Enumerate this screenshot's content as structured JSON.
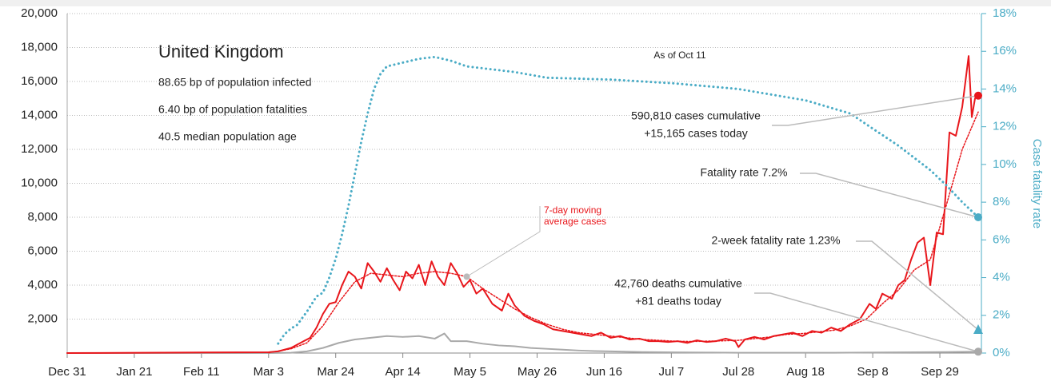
{
  "chart_data": {
    "type": "line",
    "title": "United Kingdom",
    "stats": [
      "88.65 bp of population infected",
      "6.40 bp of population fatalities",
      "40.5 median population age"
    ],
    "as_of": "As of Oct 11",
    "y2label": "Case fatality rate",
    "xlim": [
      0,
      286
    ],
    "xticks": [
      {
        "value": 0,
        "label": "Dec 31"
      },
      {
        "value": 21,
        "label": "Jan 21"
      },
      {
        "value": 42,
        "label": "Feb 11"
      },
      {
        "value": 63,
        "label": "Mar 3"
      },
      {
        "value": 84,
        "label": "Mar 24"
      },
      {
        "value": 105,
        "label": "Apr 14"
      },
      {
        "value": 126,
        "label": "May 5"
      },
      {
        "value": 147,
        "label": "May 26"
      },
      {
        "value": 168,
        "label": "Jun 16"
      },
      {
        "value": 189,
        "label": "Jul 7"
      },
      {
        "value": 210,
        "label": "Jul 28"
      },
      {
        "value": 231,
        "label": "Aug 18"
      },
      {
        "value": 252,
        "label": "Sep 8"
      },
      {
        "value": 273,
        "label": "Sep 29"
      }
    ],
    "ylim": [
      0,
      20000
    ],
    "yticks": [
      {
        "value": 2000,
        "label": "2,000"
      },
      {
        "value": 4000,
        "label": "4,000"
      },
      {
        "value": 6000,
        "label": "6,000"
      },
      {
        "value": 8000,
        "label": "8,000"
      },
      {
        "value": 10000,
        "label": "10,000"
      },
      {
        "value": 12000,
        "label": "12,000"
      },
      {
        "value": 14000,
        "label": "14,000"
      },
      {
        "value": 16000,
        "label": "16,000"
      },
      {
        "value": 18000,
        "label": "18,000"
      },
      {
        "value": 20000,
        "label": "20,000"
      }
    ],
    "y2lim": [
      0,
      18
    ],
    "y2ticks": [
      {
        "value": 0,
        "label": "0%"
      },
      {
        "value": 2,
        "label": "2%"
      },
      {
        "value": 4,
        "label": "4%"
      },
      {
        "value": 6,
        "label": "6%"
      },
      {
        "value": 8,
        "label": "8%"
      },
      {
        "value": 10,
        "label": "10%"
      },
      {
        "value": 12,
        "label": "12%"
      },
      {
        "value": 14,
        "label": "14%"
      },
      {
        "value": 16,
        "label": "16%"
      },
      {
        "value": 18,
        "label": "18%"
      }
    ],
    "grid": true,
    "series": [
      {
        "color": "#a9a9a9",
        "line_style": "solid",
        "x": [
          0,
          63,
          70,
          75,
          80,
          85,
          90,
          95,
          100,
          105,
          110,
          115,
          118,
          120,
          125,
          130,
          135,
          140,
          145,
          150,
          155,
          160,
          165,
          170,
          180,
          190,
          200,
          210,
          220,
          240,
          260,
          275,
          285
        ],
        "values": [
          0,
          0,
          20,
          100,
          300,
          600,
          800,
          900,
          1000,
          950,
          1000,
          850,
          1150,
          700,
          700,
          550,
          450,
          400,
          300,
          250,
          200,
          150,
          120,
          100,
          60,
          40,
          30,
          20,
          15,
          15,
          40,
          60,
          81
        ]
      },
      {
        "color": "#e8161b",
        "line_style": "solid",
        "x": [
          0,
          63,
          66,
          70,
          73,
          76,
          78,
          80,
          82,
          84,
          86,
          88,
          90,
          92,
          94,
          96,
          98,
          100,
          102,
          104,
          106,
          108,
          110,
          112,
          114,
          116,
          118,
          120,
          122,
          124,
          126,
          128,
          130,
          133,
          136,
          138,
          140,
          143,
          146,
          149,
          152,
          155,
          158,
          161,
          164,
          167,
          170,
          173,
          176,
          179,
          182,
          185,
          188,
          191,
          194,
          197,
          200,
          203,
          206,
          209,
          210,
          212,
          215,
          218,
          221,
          224,
          227,
          230,
          233,
          236,
          239,
          242,
          245,
          248,
          251,
          253,
          255,
          258,
          260,
          262,
          264,
          266,
          268,
          270,
          272,
          274,
          276,
          278,
          280,
          282,
          283,
          284,
          285
        ],
        "values": [
          0,
          50,
          100,
          300,
          600,
          900,
          1500,
          2300,
          2900,
          3000,
          4000,
          4800,
          4500,
          3800,
          5300,
          4800,
          4200,
          5000,
          4300,
          3700,
          4800,
          4400,
          5200,
          4000,
          5400,
          4500,
          4000,
          5300,
          4700,
          3900,
          4300,
          3500,
          3800,
          2900,
          2500,
          3500,
          2800,
          2200,
          1900,
          1700,
          1400,
          1300,
          1200,
          1100,
          1000,
          1200,
          900,
          1000,
          800,
          850,
          700,
          700,
          650,
          700,
          600,
          750,
          650,
          700,
          850,
          700,
          350,
          800,
          950,
          800,
          1000,
          1100,
          1200,
          1000,
          1300,
          1200,
          1500,
          1300,
          1700,
          2000,
          2900,
          2600,
          3500,
          3200,
          4000,
          4300,
          5500,
          6500,
          6800,
          4000,
          7100,
          7000,
          13000,
          12800,
          14500,
          17500,
          13900,
          15000,
          15165
        ]
      },
      {
        "name": "7-day moving average cases",
        "color": "#e8161b",
        "line_style": "dotted",
        "x": [
          63,
          70,
          75,
          80,
          85,
          90,
          95,
          100,
          105,
          110,
          115,
          120,
          125,
          130,
          135,
          140,
          145,
          150,
          155,
          160,
          165,
          170,
          175,
          180,
          185,
          190,
          195,
          200,
          205,
          210,
          215,
          220,
          225,
          230,
          235,
          240,
          245,
          250,
          255,
          260,
          265,
          270,
          275,
          280,
          285
        ],
        "values": [
          20,
          250,
          600,
          1600,
          3000,
          4200,
          4700,
          4600,
          4500,
          4700,
          4800,
          4700,
          4500,
          3800,
          3200,
          2600,
          2100,
          1700,
          1400,
          1200,
          1100,
          1000,
          900,
          800,
          750,
          700,
          680,
          700,
          720,
          750,
          850,
          950,
          1100,
          1150,
          1250,
          1350,
          1600,
          2000,
          2900,
          3700,
          4900,
          5500,
          8700,
          12000,
          14200
        ]
      },
      {
        "color": "#4bacc6",
        "line_style": "dotted",
        "axis": "y2",
        "x": [
          66,
          68,
          70,
          72,
          75,
          78,
          80,
          82,
          84,
          86,
          88,
          90,
          92,
          94,
          96,
          98,
          100,
          105,
          110,
          115,
          120,
          125,
          130,
          140,
          150,
          170,
          190,
          210,
          231,
          245,
          252,
          260,
          270,
          275,
          280,
          285
        ],
        "values": [
          0.5,
          1.0,
          1.3,
          1.5,
          2.2,
          3.0,
          3.2,
          4.0,
          5.0,
          6.3,
          7.8,
          9.5,
          11.2,
          12.7,
          14.0,
          14.8,
          15.2,
          15.4,
          15.6,
          15.7,
          15.5,
          15.2,
          15.1,
          14.9,
          14.6,
          14.5,
          14.3,
          14.0,
          13.4,
          12.7,
          11.9,
          11.0,
          9.7,
          8.9,
          8.0,
          7.2
        ]
      }
    ],
    "callouts": [
      {
        "lines": [
          "590,810 cases cumulative",
          "+15,165 cases today"
        ]
      },
      {
        "lines": [
          "Fatality rate 7.2%"
        ]
      },
      {
        "lines": [
          "2-week fatality rate 1.23%"
        ],
        "value": 1.23,
        "axis": "y2"
      },
      {
        "lines": [
          "42,760 deaths cumulative",
          "+81 deaths today"
        ]
      }
    ]
  }
}
